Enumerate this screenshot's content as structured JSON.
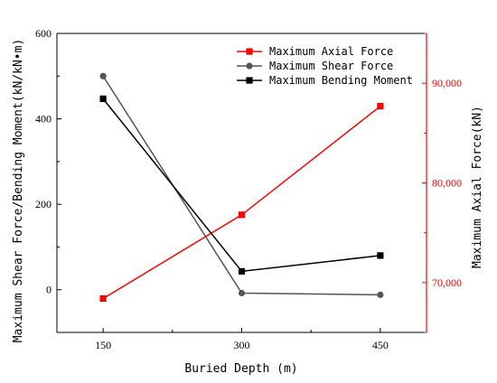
{
  "chart_data": {
    "type": "line",
    "xlabel": "Buried Depth (m)",
    "ylabel_left": "Maximum Shear Force/Bending Moment(kN/kN•m)",
    "ylabel_right": "Maximum Axial Force(kN)",
    "x": [
      150,
      300,
      450
    ],
    "x_ticks": [
      "150",
      "300",
      "450"
    ],
    "y_left_ticks": [
      "0",
      "200",
      "400",
      "600"
    ],
    "y_right_ticks": [
      "70,000",
      "80,000",
      "90,000"
    ],
    "ylim_left": [
      -100,
      600
    ],
    "ylim_right": [
      65000,
      95000
    ],
    "legend_position": "top-right",
    "series": [
      {
        "name": "Maximum Axial Force",
        "axis": "right",
        "color": "#ff0000",
        "marker": "square",
        "values": [
          68400,
          76800,
          87700
        ]
      },
      {
        "name": "Maximum Shear Force",
        "axis": "left",
        "color": "#555555",
        "marker": "circle",
        "values": [
          500,
          -8,
          -12
        ]
      },
      {
        "name": "Maximum Bending Moment",
        "axis": "left",
        "color": "#000000",
        "marker": "square",
        "values": [
          447,
          43,
          80
        ]
      }
    ]
  }
}
